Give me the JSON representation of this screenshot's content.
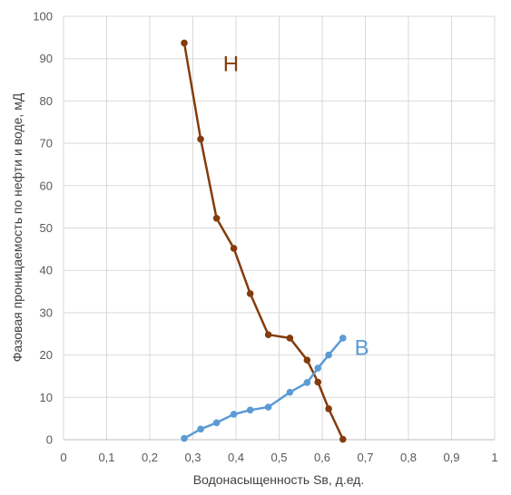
{
  "chart_data": {
    "type": "scatter",
    "title": "",
    "xlabel": "Водонасыщенность Sв, д.ед.",
    "ylabel": "Фазовая проницаемость по нефти и воде, мД",
    "xlim": [
      0,
      1
    ],
    "ylim": [
      0,
      100
    ],
    "x_ticks": [
      "0",
      "0,1",
      "0,2",
      "0,3",
      "0,4",
      "0,5",
      "0,6",
      "0,7",
      "0,8",
      "0,9",
      "1"
    ],
    "y_ticks": [
      "0",
      "10",
      "20",
      "30",
      "40",
      "50",
      "60",
      "70",
      "80",
      "90",
      "100"
    ],
    "grid": true,
    "legend": "none",
    "series": [
      {
        "name": "Н",
        "color": "#843c0c",
        "label_at": [
          0.37,
          87
        ],
        "points": [
          [
            0.28,
            93.7
          ],
          [
            0.318,
            71.0
          ],
          [
            0.355,
            52.3
          ],
          [
            0.395,
            45.2
          ],
          [
            0.433,
            34.5
          ],
          [
            0.475,
            24.8
          ],
          [
            0.525,
            24.0
          ],
          [
            0.565,
            18.8
          ],
          [
            0.59,
            13.6
          ],
          [
            0.615,
            7.3
          ],
          [
            0.648,
            0.1
          ]
        ]
      },
      {
        "name": "В",
        "color": "#5b9bd5",
        "label_at": [
          0.675,
          20
        ],
        "points": [
          [
            0.28,
            0.3
          ],
          [
            0.318,
            2.5
          ],
          [
            0.355,
            4.0
          ],
          [
            0.395,
            6.0
          ],
          [
            0.433,
            7.0
          ],
          [
            0.475,
            7.7
          ],
          [
            0.525,
            11.2
          ],
          [
            0.565,
            13.5
          ],
          [
            0.59,
            16.9
          ],
          [
            0.615,
            20.0
          ],
          [
            0.648,
            24.0
          ]
        ]
      }
    ]
  }
}
